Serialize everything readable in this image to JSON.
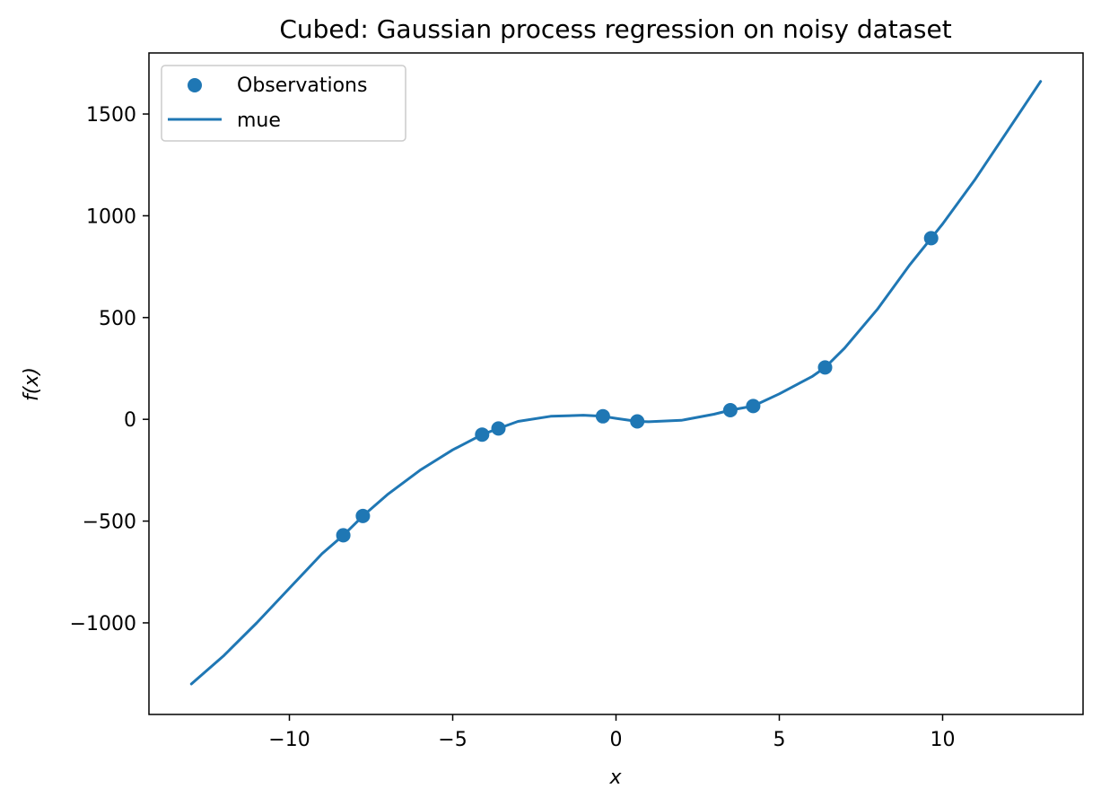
{
  "chart_data": {
    "type": "line",
    "title": "Cubed: Gaussian process regression on noisy dataset",
    "xlabel": "x",
    "ylabel": "f(x)",
    "xlim": [
      -14.3,
      14.3
    ],
    "ylim": [
      -1450,
      1800
    ],
    "x_ticks": [
      -10,
      -5,
      0,
      5,
      10
    ],
    "x_tick_labels": [
      "−10",
      "−5",
      "0",
      "5",
      "10"
    ],
    "y_ticks": [
      -1000,
      -500,
      0,
      500,
      1000,
      1500
    ],
    "y_tick_labels": [
      "−1000",
      "−500",
      "0",
      "500",
      "1000",
      "1500"
    ],
    "grid": false,
    "legend_position": "top-left",
    "color": "#1f77b4",
    "series": [
      {
        "name": "Observations",
        "kind": "scatter",
        "x": [
          -8.35,
          -7.75,
          -4.1,
          -3.6,
          -0.4,
          0.65,
          3.5,
          4.2,
          6.4,
          9.65
        ],
        "y": [
          -570,
          -475,
          -75,
          -45,
          15,
          -10,
          45,
          65,
          255,
          890
        ]
      },
      {
        "name": "mue",
        "kind": "line",
        "x": [
          -13,
          -12,
          -11,
          -10,
          -9,
          -8.35,
          -7.75,
          -7,
          -6,
          -5,
          -4.1,
          -3.6,
          -3,
          -2,
          -1,
          -0.4,
          0,
          0.65,
          1,
          2,
          3,
          3.5,
          4.2,
          5,
          6,
          6.4,
          7,
          8,
          9,
          9.65,
          10,
          11,
          12,
          13
        ],
        "y": [
          -1300,
          -1160,
          -1000,
          -830,
          -660,
          -570,
          -475,
          -370,
          -250,
          -150,
          -75,
          -45,
          -10,
          15,
          20,
          15,
          5,
          -10,
          -12,
          -5,
          25,
          45,
          65,
          125,
          210,
          255,
          350,
          540,
          760,
          890,
          960,
          1180,
          1420,
          1660
        ]
      }
    ]
  }
}
